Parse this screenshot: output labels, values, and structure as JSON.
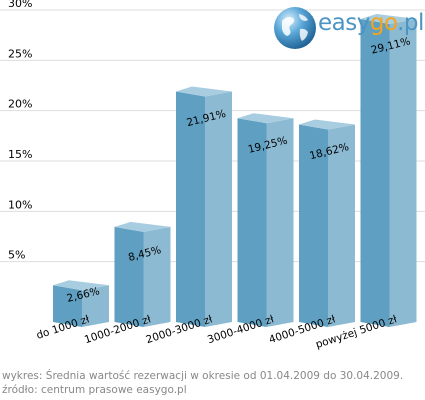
{
  "logo": {
    "part1": "easy",
    "part2": "go",
    "part3": ".pl"
  },
  "colors": {
    "bar_front": "#5f9fc2",
    "bar_side": "#8cbad3",
    "bar_top": "#a9cde0",
    "grid": "#dddddd",
    "axis_text": "#000000",
    "footer_text": "#888888"
  },
  "chart_data": {
    "type": "bar",
    "categories": [
      "do 1000 zł",
      "1000-2000 zł",
      "2000-3000 zł",
      "3000-4000 zł",
      "4000-5000 zł",
      "powyżej 5000 zł"
    ],
    "values": [
      2.66,
      8.45,
      21.91,
      19.25,
      18.62,
      29.11
    ],
    "value_labels": [
      "2,66%",
      "8,45%",
      "21,91%",
      "19,25%",
      "18,62%",
      "29,11%"
    ],
    "y_ticks": [
      5,
      10,
      15,
      20,
      25,
      30
    ],
    "y_tick_labels": [
      "5%",
      "10%",
      "15%",
      "20%",
      "25%",
      "30%"
    ],
    "ylim": [
      0,
      30
    ],
    "grid": true
  },
  "footer": {
    "caption": "wykres: Średnia wartość rezerwacji w okresie od 01.04.2009 do 30.04.2009.",
    "source": "źródło: centrum prasowe easygo.pl"
  }
}
